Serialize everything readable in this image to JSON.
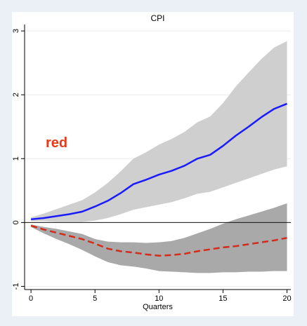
{
  "chart_data": {
    "type": "line",
    "title": "CPI",
    "xlabel": "Quarters",
    "ylabel": "",
    "xlim": [
      -0.5,
      20.3
    ],
    "ylim": [
      -1.05,
      3.1
    ],
    "xticks": [
      0,
      5,
      10,
      15,
      20
    ],
    "xtick_labels": [
      "0",
      "5",
      "10",
      "15",
      "20"
    ],
    "yticks": [
      -1,
      0,
      1,
      2,
      3
    ],
    "ytick_labels": [
      "-1",
      "0",
      "1",
      "2",
      "3"
    ],
    "grid": "horizontal",
    "x": [
      0,
      1,
      2,
      3,
      4,
      5,
      6,
      7,
      8,
      9,
      10,
      11,
      12,
      13,
      14,
      15,
      16,
      17,
      18,
      19,
      20
    ],
    "zero_line": 0,
    "annotation": {
      "text": "red",
      "x": 2.0,
      "y": 1.18,
      "color": "#e8391b"
    },
    "series": [
      {
        "values": [
          0.05,
          0.07,
          0.1,
          0.13,
          0.17,
          0.25,
          0.34,
          0.46,
          0.6,
          0.67,
          0.75,
          0.81,
          0.89,
          1.0,
          1.06,
          1.2,
          1.36,
          1.5,
          1.65,
          1.78,
          1.86
        ],
        "color": "#1a1aff",
        "style": "solid",
        "band": {
          "lower": [
            0.02,
            0.02,
            0.01,
            0.01,
            0.01,
            0.03,
            0.07,
            0.13,
            0.2,
            0.24,
            0.28,
            0.32,
            0.38,
            0.45,
            0.48,
            0.55,
            0.62,
            0.69,
            0.76,
            0.83,
            0.88
          ],
          "upper": [
            0.08,
            0.14,
            0.21,
            0.28,
            0.35,
            0.47,
            0.62,
            0.8,
            1.0,
            1.1,
            1.22,
            1.31,
            1.42,
            1.57,
            1.66,
            1.87,
            2.13,
            2.35,
            2.56,
            2.74,
            2.84
          ],
          "color": "#cfcfcf"
        }
      },
      {
        "values": [
          -0.05,
          -0.11,
          -0.16,
          -0.21,
          -0.26,
          -0.33,
          -0.41,
          -0.45,
          -0.47,
          -0.5,
          -0.52,
          -0.51,
          -0.49,
          -0.45,
          -0.42,
          -0.39,
          -0.37,
          -0.34,
          -0.31,
          -0.28,
          -0.24
        ],
        "color": "#d42b1a",
        "style": "dashed",
        "band": {
          "lower": [
            -0.07,
            -0.17,
            -0.26,
            -0.34,
            -0.43,
            -0.53,
            -0.62,
            -0.67,
            -0.69,
            -0.72,
            -0.76,
            -0.77,
            -0.78,
            -0.79,
            -0.79,
            -0.78,
            -0.78,
            -0.77,
            -0.77,
            -0.76,
            -0.76
          ],
          "upper": [
            -0.03,
            -0.07,
            -0.1,
            -0.14,
            -0.18,
            -0.26,
            -0.3,
            -0.31,
            -0.31,
            -0.32,
            -0.31,
            -0.29,
            -0.24,
            -0.17,
            -0.1,
            -0.02,
            0.05,
            0.11,
            0.17,
            0.23,
            0.3
          ],
          "color": "#a9a9a9"
        }
      }
    ]
  }
}
